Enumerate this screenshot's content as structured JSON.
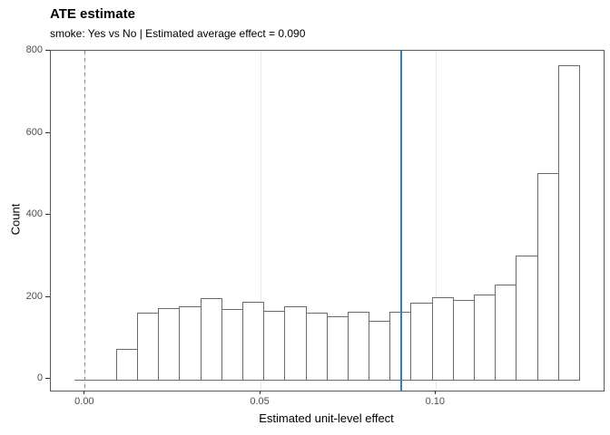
{
  "header": {
    "title": "ATE estimate",
    "subtitle": "smoke: Yes vs No | Estimated average effect = 0.090"
  },
  "chart_data": {
    "type": "bar",
    "subtype": "histogram",
    "title": "ATE estimate",
    "subtitle": "smoke: Yes vs No | Estimated average effect = 0.090",
    "xlabel": "Estimated unit-level effect",
    "ylabel": "Count",
    "bin_start": -0.0032,
    "bin_width": 0.006,
    "counts": [
      0,
      0,
      75,
      162,
      175,
      179,
      198,
      171,
      189,
      168,
      178,
      163,
      155,
      166,
      143,
      166,
      188,
      201,
      194,
      208,
      232,
      301,
      502,
      765
    ],
    "x_ticks": [
      0.0,
      0.05,
      0.1
    ],
    "x_tick_labels": [
      "0.00",
      "0.05",
      "0.10"
    ],
    "y_ticks": [
      0,
      200,
      400,
      600,
      800
    ],
    "y_tick_labels": [
      "0",
      "200",
      "400",
      "600",
      "800"
    ],
    "xlim": [
      -0.0098,
      0.1478
    ],
    "ylim": [
      -27,
      801
    ],
    "grid": "vertical-major-only",
    "legend_position": "none",
    "vlines": [
      {
        "x": 0.0,
        "style": "dashed",
        "color": "#8a8a8a",
        "label": "zero-reference-line"
      },
      {
        "x": 0.09,
        "style": "solid",
        "color": "#3182bd",
        "label": "ate-estimate-line"
      }
    ],
    "colors": {
      "bar_fill": "#ffffff",
      "bar_stroke": "#6a6a6a",
      "panel_border": "#595959",
      "grid": "#e9e9e9",
      "tick_label": "#4d4d4d",
      "reference_line": "#8a8a8a",
      "ate_line": "#3182bd"
    }
  }
}
